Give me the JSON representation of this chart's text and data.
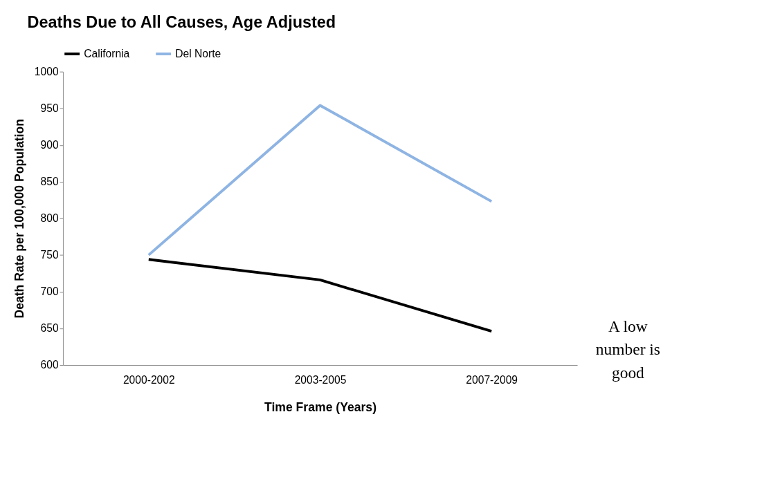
{
  "chart_data": {
    "type": "line",
    "title": "Deaths Due to All Causes,  Age Adjusted",
    "xlabel": "Time Frame (Years)",
    "ylabel": "Death Rate per 100,000 Population",
    "categories": [
      "2000-2002",
      "2003-2005",
      "2007-2009"
    ],
    "series": [
      {
        "name": "California",
        "color": "#000000",
        "values": [
          744,
          716,
          646
        ]
      },
      {
        "name": "Del Norte",
        "color": "#8eb4e3",
        "values": [
          750,
          954,
          823
        ]
      }
    ],
    "ylim": [
      600,
      1000
    ],
    "yticks": [
      600,
      650,
      700,
      750,
      800,
      850,
      900,
      950,
      {
        "value": 1000,
        "label": "1000"
      }
    ],
    "grid": false,
    "legend": "top",
    "marker": "none",
    "line_style": "solid",
    "annotations": [
      "A low\nnumber is\ngood"
    ]
  }
}
